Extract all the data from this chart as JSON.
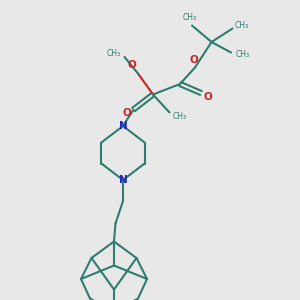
{
  "bg_color": "#e8e8e8",
  "bond_color": "#2d7d6e",
  "N_color": "#2222cc",
  "O_color": "#cc2222",
  "linewidth": 1.5,
  "figsize": [
    3.0,
    3.0
  ],
  "dpi": 100,
  "xlim": [
    0,
    10
  ],
  "ylim": [
    0,
    10
  ]
}
